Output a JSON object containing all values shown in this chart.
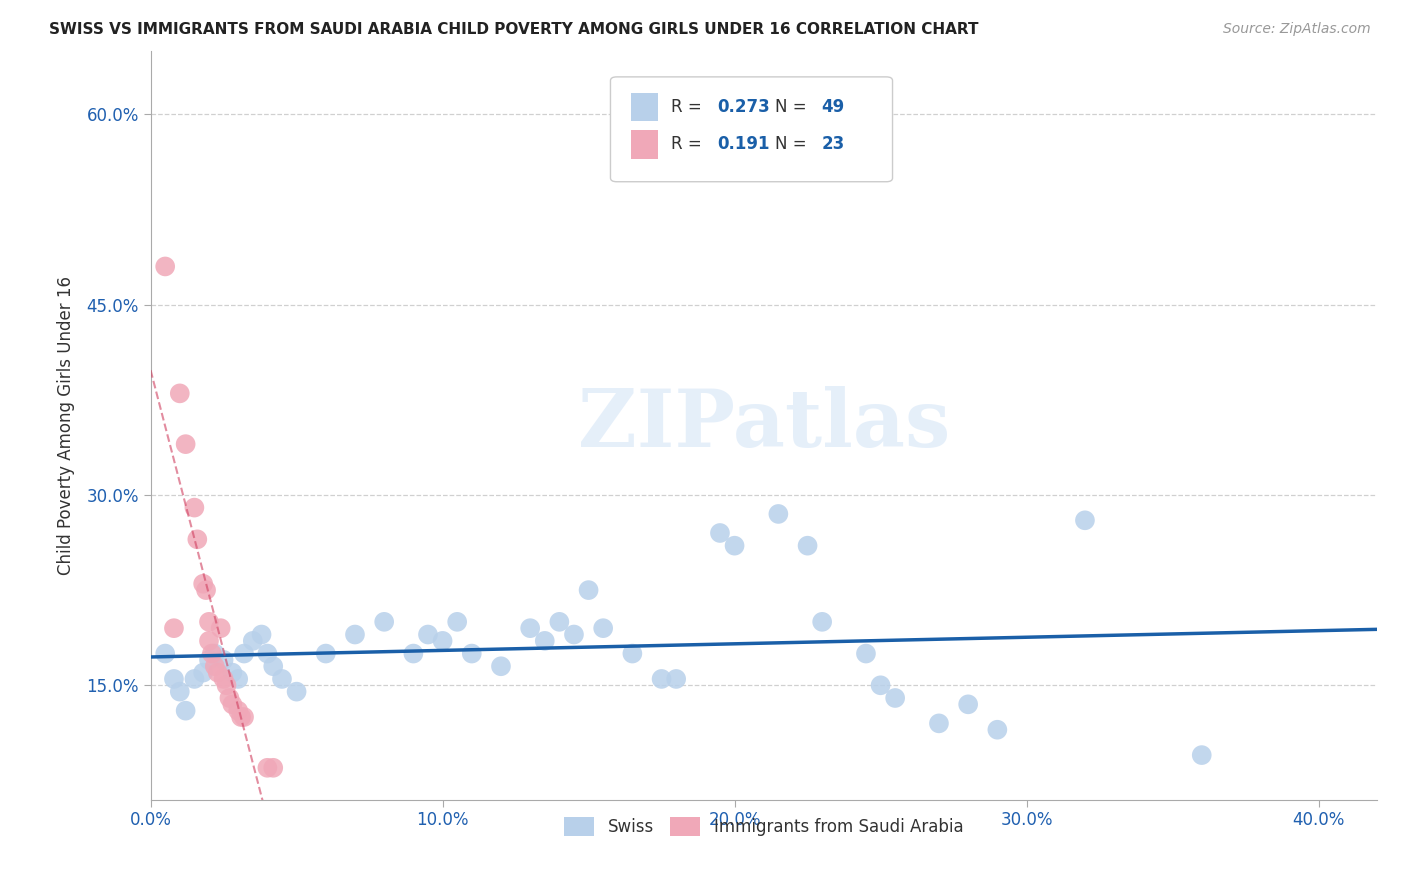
{
  "title": "SWISS VS IMMIGRANTS FROM SAUDI ARABIA CHILD POVERTY AMONG GIRLS UNDER 16 CORRELATION CHART",
  "source": "Source: ZipAtlas.com",
  "ylabel": "Child Poverty Among Girls Under 16",
  "xlim": [
    0.0,
    0.42
  ],
  "ylim": [
    0.06,
    0.65
  ],
  "watermark_text": "ZIPatlas",
  "legend_entry1_R": "0.273",
  "legend_entry1_N": "49",
  "legend_entry2_R": "0.191",
  "legend_entry2_N": "23",
  "legend_label1": "Swiss",
  "legend_label2": "Immigrants from Saudi Arabia",
  "swiss_color": "#b8d0ea",
  "swiss_line_color": "#1a5fa8",
  "saudi_color": "#f0a8b8",
  "saudi_line_color": "#d04060",
  "xtick_vals": [
    0.0,
    0.1,
    0.2,
    0.3,
    0.4
  ],
  "xtick_labels": [
    "0.0%",
    "10.0%",
    "20.0%",
    "30.0%",
    "40.0%"
  ],
  "ytick_vals": [
    0.15,
    0.3,
    0.45,
    0.6
  ],
  "ytick_labels": [
    "15.0%",
    "30.0%",
    "45.0%",
    "60.0%"
  ],
  "grid_color": "#d0d0d0",
  "bg_color": "#ffffff",
  "title_color": "#222222",
  "tick_color": "#2060b0",
  "stat_color_blue": "#1a5fa8",
  "swiss_scatter": [
    [
      0.005,
      0.175
    ],
    [
      0.008,
      0.155
    ],
    [
      0.01,
      0.145
    ],
    [
      0.012,
      0.13
    ],
    [
      0.015,
      0.155
    ],
    [
      0.018,
      0.16
    ],
    [
      0.02,
      0.17
    ],
    [
      0.022,
      0.175
    ],
    [
      0.025,
      0.17
    ],
    [
      0.028,
      0.16
    ],
    [
      0.03,
      0.155
    ],
    [
      0.032,
      0.175
    ],
    [
      0.035,
      0.185
    ],
    [
      0.038,
      0.19
    ],
    [
      0.04,
      0.175
    ],
    [
      0.042,
      0.165
    ],
    [
      0.045,
      0.155
    ],
    [
      0.05,
      0.145
    ],
    [
      0.06,
      0.175
    ],
    [
      0.07,
      0.19
    ],
    [
      0.08,
      0.2
    ],
    [
      0.09,
      0.175
    ],
    [
      0.095,
      0.19
    ],
    [
      0.1,
      0.185
    ],
    [
      0.105,
      0.2
    ],
    [
      0.11,
      0.175
    ],
    [
      0.12,
      0.165
    ],
    [
      0.13,
      0.195
    ],
    [
      0.135,
      0.185
    ],
    [
      0.14,
      0.2
    ],
    [
      0.145,
      0.19
    ],
    [
      0.15,
      0.225
    ],
    [
      0.155,
      0.195
    ],
    [
      0.165,
      0.175
    ],
    [
      0.175,
      0.155
    ],
    [
      0.18,
      0.155
    ],
    [
      0.195,
      0.27
    ],
    [
      0.2,
      0.26
    ],
    [
      0.215,
      0.285
    ],
    [
      0.225,
      0.26
    ],
    [
      0.23,
      0.2
    ],
    [
      0.245,
      0.175
    ],
    [
      0.25,
      0.15
    ],
    [
      0.255,
      0.14
    ],
    [
      0.27,
      0.12
    ],
    [
      0.28,
      0.135
    ],
    [
      0.29,
      0.115
    ],
    [
      0.32,
      0.28
    ],
    [
      0.36,
      0.095
    ]
  ],
  "saudi_scatter": [
    [
      0.005,
      0.48
    ],
    [
      0.008,
      0.195
    ],
    [
      0.01,
      0.38
    ],
    [
      0.012,
      0.34
    ],
    [
      0.015,
      0.29
    ],
    [
      0.016,
      0.265
    ],
    [
      0.018,
      0.23
    ],
    [
      0.019,
      0.225
    ],
    [
      0.02,
      0.2
    ],
    [
      0.02,
      0.185
    ],
    [
      0.021,
      0.175
    ],
    [
      0.022,
      0.165
    ],
    [
      0.023,
      0.16
    ],
    [
      0.024,
      0.195
    ],
    [
      0.025,
      0.155
    ],
    [
      0.026,
      0.15
    ],
    [
      0.027,
      0.14
    ],
    [
      0.028,
      0.135
    ],
    [
      0.03,
      0.13
    ],
    [
      0.031,
      0.125
    ],
    [
      0.032,
      0.125
    ],
    [
      0.04,
      0.085
    ],
    [
      0.042,
      0.085
    ]
  ]
}
